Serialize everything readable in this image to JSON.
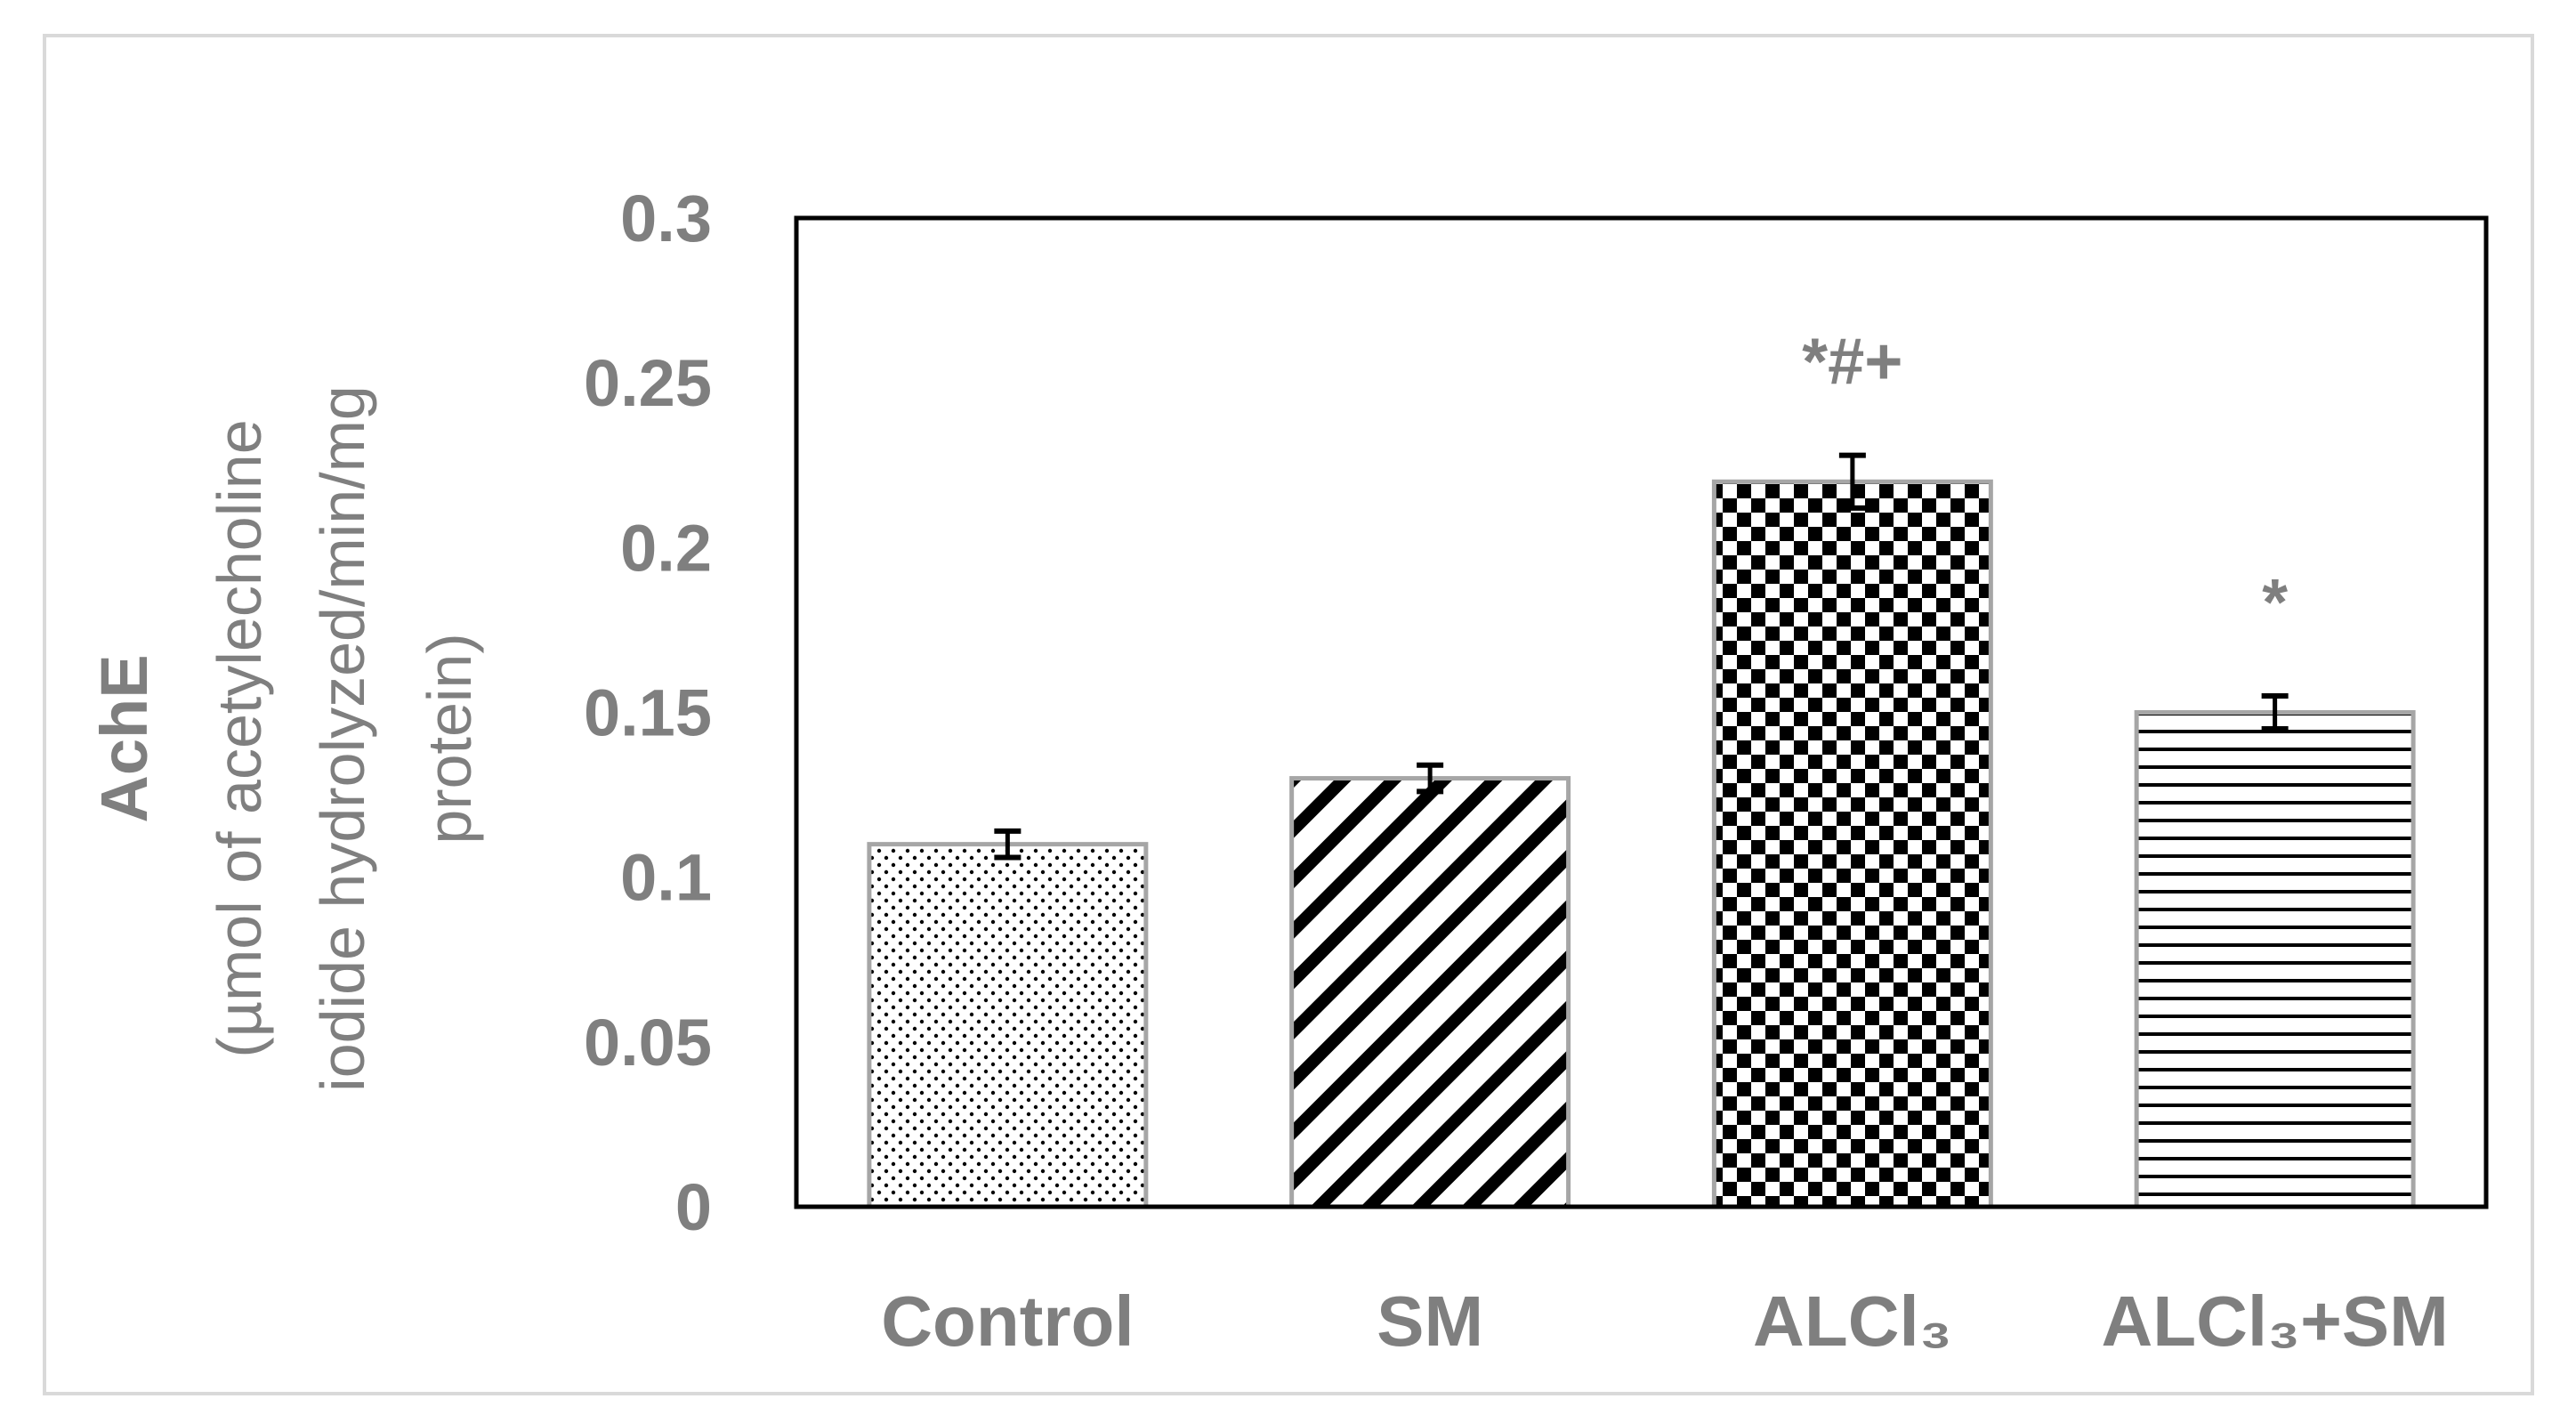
{
  "chart_data": {
    "type": "bar",
    "categories": [
      "Control",
      "SM",
      "ALCl₃",
      "ALCl₃+SM"
    ],
    "values": [
      0.11,
      0.13,
      0.22,
      0.15
    ],
    "errors": [
      0.004,
      0.004,
      0.008,
      0.005
    ],
    "significance": [
      "",
      "",
      "*#+",
      "*"
    ],
    "patterns": [
      "dots",
      "diagonal-stripes",
      "checkerboard",
      "horizontal-stripes"
    ],
    "ylabel_lines": [
      "AchE",
      "(µmol of acetylecholine",
      "iodide hydrolyzed/min/mg",
      "protein)"
    ],
    "ylim": [
      0,
      0.3
    ],
    "yticks": [
      "0",
      "0.05",
      "0.1",
      "0.15",
      "0.2",
      "0.25",
      "0.3"
    ],
    "grid": false,
    "legend": "none",
    "colors": {
      "text": "#7f7f7f",
      "bar_border": "#a6a6a6",
      "pattern": "#000000",
      "axis": "#000000",
      "frame": "#d9d9d9"
    }
  }
}
